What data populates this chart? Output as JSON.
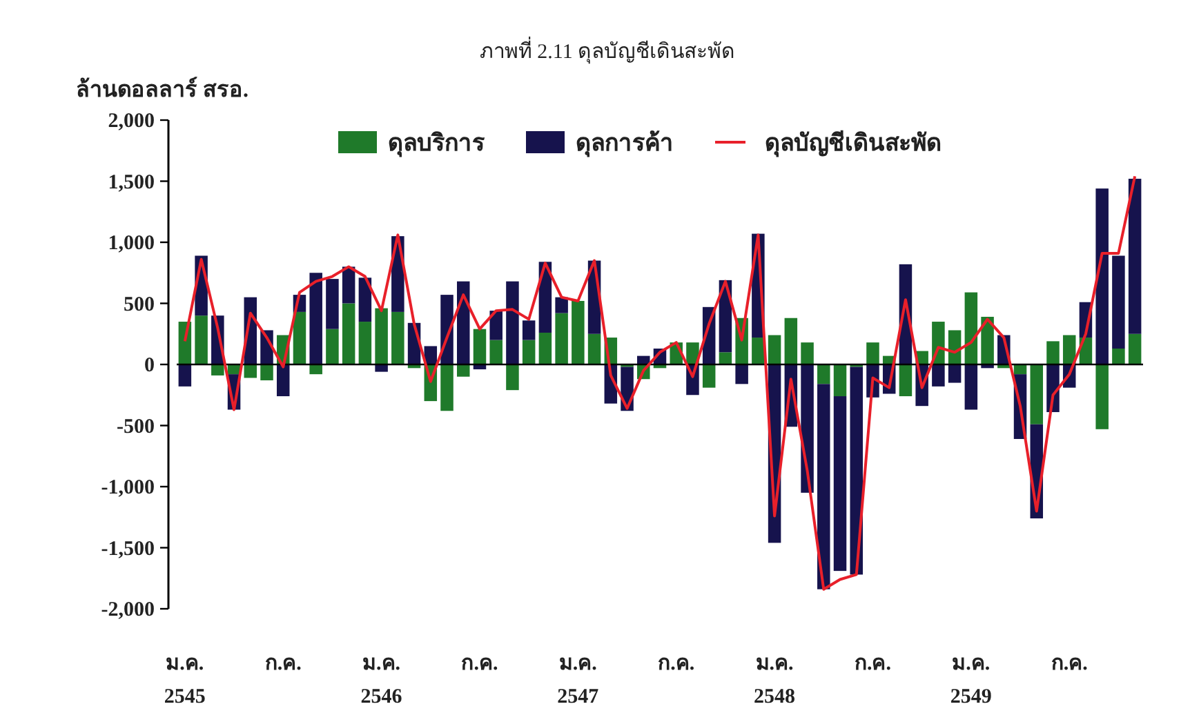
{
  "chart_data": {
    "type": "bar",
    "stacked": true,
    "title": "ภาพที่ 2.11  ดุลบัญชีเดินสะพัด",
    "ylabel": "ล้านดอลลาร์ สรอ.",
    "categories": [
      "ม.ค.\n2545",
      null,
      null,
      null,
      null,
      null,
      "ก.ค.",
      null,
      null,
      null,
      null,
      null,
      "ม.ค.\n2546",
      null,
      null,
      null,
      null,
      null,
      "ก.ค.",
      null,
      null,
      null,
      null,
      null,
      "ม.ค.\n2547",
      null,
      null,
      null,
      null,
      null,
      "ก.ค.",
      null,
      null,
      null,
      null,
      null,
      "ม.ค.\n2548",
      null,
      null,
      null,
      null,
      null,
      "ก.ค.",
      null,
      null,
      null,
      null,
      null,
      "ม.ค.\n2549",
      null,
      null,
      null,
      null,
      null,
      "ก.ค.",
      null,
      null,
      null,
      null
    ],
    "series": [
      {
        "name": "ดุลบริการ",
        "color": "#1f7a2a",
        "values": [
          350,
          400,
          -90,
          -80,
          -110,
          -130,
          240,
          430,
          -80,
          290,
          500,
          350,
          460,
          430,
          -30,
          -300,
          -380,
          -100,
          290,
          200,
          -210,
          200,
          260,
          420,
          520,
          250,
          220,
          -20,
          -120,
          -30,
          180,
          180,
          -190,
          100,
          380,
          220,
          240,
          380,
          180,
          -160,
          -260,
          -20,
          180,
          70,
          -260,
          110,
          350,
          280,
          590,
          390,
          -30,
          -80,
          -490,
          190,
          240,
          220,
          -530,
          130,
          250
        ]
      },
      {
        "name": "ดุลการค้า",
        "color": "#16134d",
        "values": [
          -180,
          490,
          400,
          -290,
          550,
          280,
          -260,
          140,
          750,
          410,
          300,
          360,
          -60,
          620,
          340,
          150,
          570,
          680,
          -40,
          240,
          680,
          160,
          580,
          130,
          0,
          600,
          -320,
          -360,
          70,
          130,
          0,
          -250,
          470,
          590,
          -160,
          850,
          -1460,
          -510,
          -1050,
          -1680,
          -1430,
          -1700,
          -270,
          -240,
          820,
          -340,
          -180,
          -150,
          -370,
          -30,
          240,
          -530,
          -770,
          -390,
          -190,
          290,
          1440,
          760,
          1270
        ]
      },
      {
        "name": "ดุลบัญชีเดินสะพัด",
        "type": "line",
        "color": "#e8202a",
        "marker": "none",
        "values": [
          190,
          860,
          300,
          -370,
          420,
          220,
          -20,
          590,
          680,
          720,
          800,
          720,
          440,
          1060,
          330,
          -140,
          220,
          570,
          290,
          440,
          450,
          370,
          830,
          550,
          520,
          850,
          -90,
          -360,
          -50,
          100,
          180,
          -100,
          330,
          680,
          200,
          1060,
          -1240,
          -120,
          -870,
          -1840,
          -1760,
          -1720,
          -110,
          -190,
          530,
          -190,
          140,
          100,
          180,
          370,
          220,
          -340,
          -1200,
          -250,
          -80,
          250,
          910,
          910,
          1540
        ]
      }
    ],
    "ylim": [
      -2000,
      2000
    ],
    "yticks": [
      {
        "value": -2000,
        "label": "-2,000"
      },
      {
        "value": -1500,
        "label": "-1,500"
      },
      {
        "value": -1000,
        "label": "-1,000"
      },
      {
        "value": -500,
        "label": "-500"
      },
      0,
      {
        "value": 500,
        "label": "500"
      },
      {
        "value": 1000,
        "label": "1,000"
      },
      {
        "value": 1500,
        "label": "1,500"
      },
      {
        "value": 2000,
        "label": "2,000"
      }
    ],
    "legend": "top"
  }
}
